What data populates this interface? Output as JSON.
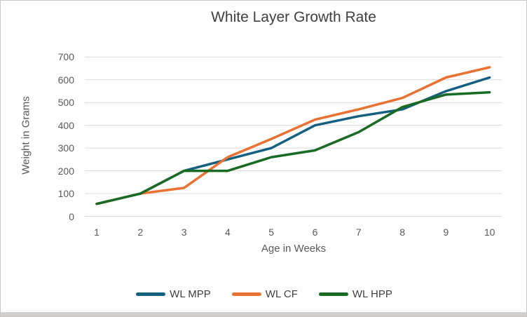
{
  "window": {
    "border_color": "#c9c7c7",
    "bottom_strip_color": "#d2cfcf",
    "background_color": "#ffffff"
  },
  "chart_data": {
    "type": "line",
    "title": "White Layer Growth Rate",
    "xlabel": "Age in Weeks",
    "ylabel": "Weight in Grams",
    "x": [
      1,
      2,
      3,
      4,
      5,
      6,
      7,
      8,
      9,
      10
    ],
    "xtick_labels": [
      "1",
      "2",
      "3",
      "4",
      "5",
      "6",
      "7",
      "8",
      "9",
      "10"
    ],
    "yticks": [
      0,
      100,
      200,
      300,
      400,
      500,
      600,
      700
    ],
    "ylim": [
      0,
      700
    ],
    "grid": "horizontal",
    "gridline_color": "#d9d9d9",
    "legend_position": "bottom",
    "title_color": "#404040",
    "axis_text_color": "#595959",
    "series": [
      {
        "name": "WL MPP",
        "color": "#156082",
        "values": [
          55,
          100,
          200,
          250,
          300,
          400,
          440,
          470,
          550,
          610
        ]
      },
      {
        "name": "WL CF",
        "color": "#E97132",
        "values": [
          55,
          100,
          125,
          260,
          340,
          425,
          470,
          520,
          610,
          655
        ]
      },
      {
        "name": "WL HPP",
        "color": "#196B24",
        "values": [
          55,
          100,
          200,
          200,
          260,
          290,
          370,
          480,
          535,
          545
        ]
      }
    ]
  }
}
